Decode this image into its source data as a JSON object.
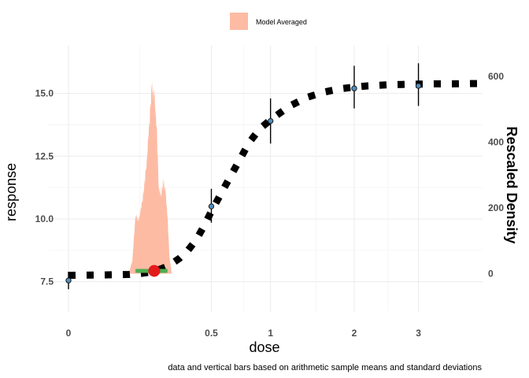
{
  "chart_data": {
    "type": "line",
    "title": "",
    "xlabel": "dose",
    "ylabel": "response",
    "y2label": "Rescaled Density",
    "caption": "data and vertical bars based on arithmetic sample means and standard deviations",
    "legend": {
      "position": "top",
      "entries": [
        {
          "label": "Model Averaged",
          "color": "#fdbba4"
        }
      ]
    },
    "grid": true,
    "x_axis": {
      "scale": "sqrt",
      "ticks": [
        0,
        0.5,
        1,
        2,
        3
      ],
      "tick_labels": [
        "0",
        "0.5",
        "1",
        "2",
        "3"
      ],
      "minor_ticks": [
        0.125,
        0.75,
        1.5,
        2.5
      ],
      "range": [
        0,
        4.2
      ]
    },
    "y_axis": {
      "ticks": [
        7.5,
        10.0,
        12.5,
        15.0
      ],
      "tick_labels": [
        "7.5",
        "10.0",
        "12.5",
        "15.0"
      ],
      "range": [
        6.55,
        16.9
      ]
    },
    "y2_axis": {
      "ticks": [
        0,
        200,
        400,
        600
      ],
      "tick_labels": [
        "0",
        "200",
        "400",
        "600"
      ],
      "range": [
        -97,
        694
      ]
    },
    "curve": {
      "color": "#000000",
      "x": [
        0,
        0.005,
        0.03,
        0.06,
        0.09,
        0.11,
        0.13,
        0.15,
        0.17,
        0.19,
        0.21,
        0.23,
        0.25,
        0.3,
        0.35,
        0.4,
        0.45,
        0.5,
        0.6,
        0.7,
        0.8,
        0.9,
        1.0,
        1.2,
        1.4,
        1.6,
        1.8,
        2.0,
        2.2,
        2.5,
        2.8,
        3.0,
        3.3,
        3.6,
        4.0,
        4.2
      ],
      "y": [
        7.75,
        7.76,
        7.77,
        7.78,
        7.79,
        7.81,
        7.83,
        7.86,
        7.9,
        7.95,
        8.01,
        8.08,
        8.16,
        8.42,
        8.75,
        9.17,
        9.72,
        10.3,
        11.3,
        12.2,
        13.05,
        13.6,
        13.95,
        14.5,
        14.85,
        15.05,
        15.18,
        15.25,
        15.3,
        15.34,
        15.36,
        15.37,
        15.38,
        15.38,
        15.39,
        15.39
      ]
    },
    "observations": {
      "dose": [
        0,
        0.5,
        1,
        2,
        3
      ],
      "mean": [
        7.55,
        10.5,
        13.9,
        15.2,
        15.3
      ],
      "lower": [
        7.2,
        9.85,
        13.0,
        14.4,
        14.5
      ],
      "upper": [
        7.9,
        11.2,
        14.8,
        16.1,
        16.2
      ],
      "point_color": "#4f8fc0"
    },
    "bmd_interval": {
      "lower": 0.11,
      "upper": 0.24,
      "estimate": 0.18,
      "interval_color": "#4caf50",
      "point_color": "#e31a1c",
      "response": 7.93
    },
    "density": {
      "color": "#fdbba4",
      "x": [
        0.09,
        0.1,
        0.11,
        0.12,
        0.13,
        0.14,
        0.15,
        0.16,
        0.17,
        0.18,
        0.19,
        0.2,
        0.21,
        0.22,
        0.23,
        0.24,
        0.25,
        0.26
      ],
      "y": [
        5,
        40,
        180,
        160,
        200,
        260,
        345,
        460,
        565,
        540,
        450,
        260,
        240,
        280,
        250,
        175,
        50,
        5
      ]
    }
  }
}
